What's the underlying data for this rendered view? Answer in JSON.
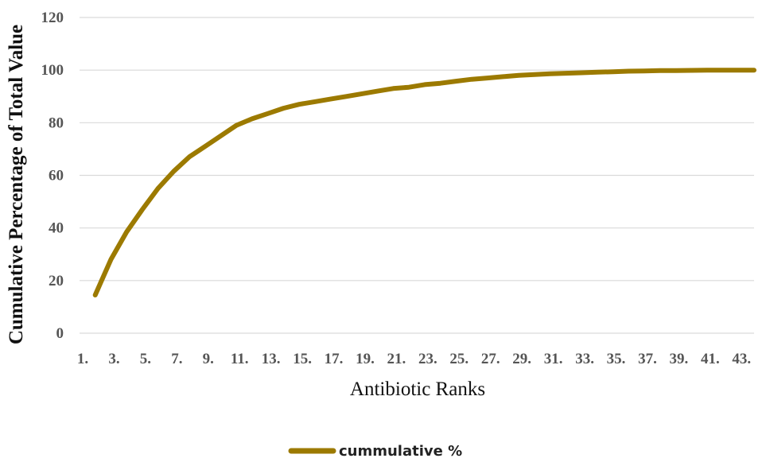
{
  "chart_data": {
    "type": "line",
    "title": "",
    "xlabel": "Antibiotic Ranks",
    "ylabel": "Cumulative Percentage of Total Value",
    "ylim": [
      0,
      120
    ],
    "yticks": [
      "0",
      "20",
      "40",
      "60",
      "80",
      "100",
      "120"
    ],
    "grid": true,
    "legend_position": "bottom",
    "x_tick_labels": [
      "1.",
      "3.",
      "5.",
      "7.",
      "9.",
      "11.",
      "13.",
      "15.",
      "17.",
      "19.",
      "21.",
      "23.",
      "25.",
      "27.",
      "29.",
      "31.",
      "33.",
      "35.",
      "37.",
      "39.",
      "41.",
      "43."
    ],
    "x_ticks": [
      1,
      3,
      5,
      7,
      9,
      11,
      13,
      15,
      17,
      19,
      21,
      23,
      25,
      27,
      29,
      31,
      33,
      35,
      37,
      39,
      41,
      43
    ],
    "series": [
      {
        "name": "cummulative %",
        "color": "#9c7a00",
        "x": [
          2,
          3,
          4,
          5,
          6,
          7,
          8,
          9,
          10,
          11,
          12,
          13,
          14,
          15,
          16,
          17,
          18,
          19,
          20,
          21,
          22,
          23,
          24,
          25,
          26,
          27,
          28,
          29,
          30,
          31,
          32,
          33,
          34,
          35,
          36,
          37,
          38,
          39,
          40,
          41,
          42,
          43,
          44
        ],
        "values": [
          14.5,
          28,
          38.5,
          47,
          55,
          61.5,
          67,
          71,
          75,
          79,
          81.5,
          83.5,
          85.5,
          87,
          88,
          89,
          90,
          91,
          92,
          93,
          93.5,
          94.5,
          95,
          95.8,
          96.5,
          97,
          97.5,
          98,
          98.3,
          98.6,
          98.8,
          99,
          99.2,
          99.4,
          99.6,
          99.7,
          99.8,
          99.8,
          99.9,
          100,
          100,
          100,
          100
        ]
      }
    ]
  }
}
